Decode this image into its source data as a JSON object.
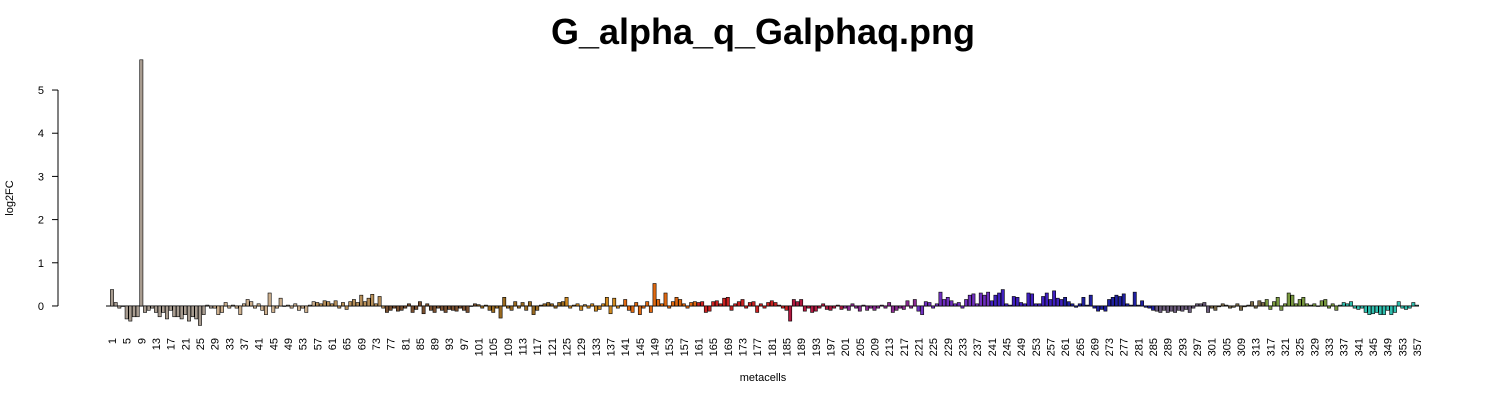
{
  "chart_data": {
    "type": "bar",
    "title": "G_alpha_q_Galphaq.png",
    "x_label": "metacells",
    "y_label": "log2FC",
    "ylim": [
      -0.45,
      5.7
    ],
    "yticks": [
      0,
      1,
      2,
      3,
      4,
      5
    ],
    "categories": [
      1,
      null,
      null,
      null,
      5,
      null,
      null,
      null,
      9,
      null,
      null,
      null,
      13,
      null,
      null,
      null,
      17,
      null,
      null,
      null,
      21,
      null,
      null,
      null,
      25,
      null,
      null,
      null,
      29,
      null,
      null,
      null,
      33,
      null,
      null,
      null,
      37,
      null,
      null,
      null,
      41,
      null,
      null,
      null,
      45,
      null,
      null,
      null,
      49,
      null,
      null,
      null,
      53,
      null,
      null,
      null,
      57,
      null,
      null,
      null,
      61,
      null,
      null,
      null,
      65,
      null,
      null,
      null,
      69,
      null,
      null,
      null,
      73,
      null,
      null,
      null,
      77,
      null,
      null,
      null,
      81,
      null,
      null,
      null,
      85,
      null,
      null,
      null,
      89,
      null,
      null,
      null,
      93,
      null,
      null,
      null,
      97,
      null,
      null,
      null,
      101,
      null,
      null,
      null,
      105,
      null,
      null,
      null,
      109,
      null,
      null,
      null,
      113,
      null,
      null,
      null,
      117,
      null,
      null,
      null,
      121,
      null,
      null,
      null,
      125,
      null,
      null,
      null,
      129,
      null,
      null,
      null,
      133,
      null,
      null,
      null,
      137,
      null,
      null,
      null,
      141,
      null,
      null,
      null,
      145,
      null,
      null,
      null,
      149,
      null,
      null,
      null,
      153,
      null,
      null,
      null,
      157,
      null,
      null,
      null,
      161,
      null,
      null,
      null,
      165,
      null,
      null,
      null,
      169,
      null,
      null,
      null,
      173,
      null,
      null,
      null,
      177,
      null,
      null,
      null,
      181,
      null,
      null,
      null,
      185,
      null,
      null,
      null,
      189,
      null,
      null,
      null,
      193,
      null,
      null,
      null,
      197,
      null,
      null,
      null,
      201,
      null,
      null,
      null,
      205,
      null,
      null,
      null,
      209,
      null,
      null,
      null,
      213,
      null,
      null,
      null,
      217,
      null,
      null,
      null,
      221,
      null,
      null,
      null,
      225,
      null,
      null,
      null,
      229,
      null,
      null,
      null,
      233,
      null,
      null,
      null,
      237,
      null,
      null,
      null,
      241,
      null,
      null,
      null,
      245,
      null,
      null,
      null,
      249,
      null,
      null,
      null,
      253,
      null,
      null,
      null,
      257,
      null,
      null,
      null,
      261,
      null,
      null,
      null,
      265,
      null,
      null,
      null,
      269,
      null,
      null,
      null,
      273,
      null,
      null,
      null,
      277,
      null,
      null,
      null,
      281,
      null,
      null,
      null,
      285,
      null,
      null,
      null,
      289,
      null,
      null,
      null,
      293,
      null,
      null,
      null,
      297,
      null,
      null,
      null,
      301,
      null,
      null,
      null,
      305,
      null,
      null,
      null,
      309,
      null,
      null,
      null,
      313,
      null,
      null,
      null,
      317,
      null,
      null,
      null,
      321,
      null,
      null,
      null,
      325,
      null,
      null,
      null,
      329,
      null,
      null,
      null,
      333,
      null,
      null,
      null,
      337,
      null,
      null,
      null,
      341,
      null,
      null,
      null,
      345,
      null,
      null,
      null,
      349,
      null,
      null,
      null,
      353,
      null,
      null,
      null,
      357
    ],
    "values": [
      0.38,
      0.08,
      -0.05,
      0,
      -0.3,
      -0.35,
      -0.25,
      -0.25,
      5.7,
      -0.15,
      -0.1,
      -0.05,
      -0.15,
      -0.25,
      -0.15,
      -0.3,
      -0.1,
      -0.25,
      -0.25,
      -0.3,
      -0.2,
      -0.35,
      -0.25,
      -0.3,
      -0.45,
      -0.2,
      0.02,
      -0.05,
      -0.05,
      -0.2,
      -0.15,
      0.08,
      -0.05,
      0.02,
      -0.05,
      -0.2,
      0.05,
      0.15,
      0.1,
      -0.05,
      0.05,
      -0.1,
      -0.2,
      0.3,
      -0.15,
      -0.05,
      0.18,
      0,
      0.02,
      -0.05,
      0.05,
      -0.1,
      -0.05,
      -0.15,
      0.02,
      0.1,
      0.08,
      0.05,
      0.12,
      0.1,
      0.05,
      0.12,
      -0.05,
      0.08,
      -0.08,
      0.1,
      0.15,
      0.08,
      0.25,
      0.1,
      0.18,
      0.27,
      0.05,
      0.22,
      -0.05,
      -0.15,
      -0.1,
      -0.05,
      -0.12,
      -0.1,
      -0.05,
      0.05,
      -0.15,
      -0.08,
      0.1,
      -0.18,
      0.05,
      -0.1,
      -0.15,
      -0.05,
      -0.1,
      -0.15,
      -0.08,
      -0.1,
      -0.12,
      -0.05,
      -0.1,
      -0.15,
      0,
      0.05,
      0.03,
      -0.05,
      0.02,
      -0.1,
      -0.15,
      -0.05,
      -0.28,
      0.2,
      -0.05,
      -0.1,
      0.1,
      -0.05,
      0.08,
      -0.1,
      0.1,
      -0.2,
      -0.1,
      0.02,
      0.05,
      0.08,
      0.05,
      -0.05,
      0.08,
      0.1,
      0.2,
      -0.05,
      0.02,
      0.05,
      -0.1,
      0.03,
      -0.05,
      0.05,
      -0.12,
      -0.08,
      0.05,
      0.2,
      -0.18,
      0.18,
      -0.05,
      0.02,
      0.15,
      -0.1,
      -0.15,
      0.08,
      -0.2,
      -0.05,
      0.1,
      -0.15,
      0.52,
      0.15,
      0.05,
      0.3,
      -0.05,
      0.1,
      0.2,
      0.15,
      0.05,
      -0.05,
      0.08,
      0.1,
      0.08,
      0.1,
      -0.15,
      -0.12,
      0.1,
      0.12,
      0.05,
      0.18,
      0.2,
      -0.1,
      0.05,
      0.1,
      0.15,
      -0.05,
      0.08,
      0.1,
      -0.15,
      0.05,
      -0.05,
      0.08,
      0.12,
      0.08,
      0.02,
      -0.05,
      -0.1,
      -0.35,
      0.15,
      0.1,
      0.15,
      -0.12,
      -0.05,
      -0.15,
      -0.12,
      -0.05,
      0.05,
      -0.08,
      -0.1,
      -0.05,
      0.02,
      -0.08,
      -0.05,
      -0.1,
      0.05,
      -0.05,
      -0.12,
      0.02,
      -0.1,
      -0.05,
      -0.1,
      -0.05,
      0.02,
      -0.05,
      0.08,
      -0.15,
      -0.1,
      -0.05,
      -0.08,
      0.12,
      -0.05,
      0.15,
      -0.12,
      -0.2,
      0.1,
      0.08,
      -0.05,
      0.05,
      0.32,
      0.15,
      0.2,
      0.12,
      0.05,
      0.08,
      -0.05,
      0.15,
      0.25,
      0.28,
      0.05,
      0.3,
      0.25,
      0.32,
      0.12,
      0.25,
      0.3,
      0.38,
      0.05,
      0.02,
      0.22,
      0.2,
      0.08,
      0.05,
      0.3,
      0.28,
      0.05,
      0.05,
      0.22,
      0.3,
      0.15,
      0.35,
      0.18,
      0.15,
      0.2,
      0.1,
      0.05,
      -0.03,
      0.05,
      0.2,
      0.02,
      0.25,
      -0.05,
      -0.12,
      -0.08,
      -0.12,
      0.15,
      0.2,
      0.25,
      0.22,
      0.28,
      0.05,
      0.02,
      0.32,
      0.02,
      0.12,
      -0.03,
      -0.05,
      -0.1,
      -0.12,
      -0.15,
      -0.1,
      -0.15,
      -0.12,
      -0.15,
      -0.1,
      -0.12,
      -0.08,
      -0.15,
      -0.05,
      0.05,
      0.05,
      0.08,
      -0.15,
      -0.05,
      -0.1,
      -0.02,
      0.05,
      0.02,
      -0.05,
      -0.03,
      0.05,
      -0.1,
      -0.02,
      0.02,
      0.1,
      -0.05,
      0.12,
      0.08,
      0.15,
      -0.08,
      0.1,
      0.2,
      -0.1,
      0.05,
      0.3,
      0.25,
      0.05,
      0.15,
      0.2,
      0.05,
      0.02,
      0.05,
      0,
      0.12,
      0.15,
      -0.05,
      0.05,
      -0.1,
      0.02,
      0.08,
      0.05,
      0.1,
      -0.05,
      -0.08,
      -0.05,
      -0.15,
      -0.2,
      -0.18,
      -0.15,
      -0.2,
      -0.2,
      -0.1,
      -0.2,
      -0.15,
      0.1,
      -0.05,
      -0.08,
      -0.05,
      0.08,
      0.02
    ],
    "colors": [
      "#a89c90",
      "#a89c90",
      "#a89c90",
      "#a89c90",
      "#a89c90",
      "#a89c90",
      "#a89c90",
      "#a89c90",
      "#a89c90",
      "#a89c90",
      "#a89c90",
      "#a89c90",
      "#a89c90",
      "#a89c90",
      "#a89c90",
      "#a89c90",
      "#a89c90",
      "#a89c90",
      "#a89c90",
      "#a89c90",
      "#a89c90",
      "#a89c90",
      "#a89c90",
      "#a89c90",
      "#a89c90",
      "#a89c90",
      "#a89c90",
      "#a89c90",
      "#cdb08e",
      "#cdb08e",
      "#cdb08e",
      "#cdb08e",
      "#cdb08e",
      "#cdb08e",
      "#cdb08e",
      "#cdb08e",
      "#cdb08e",
      "#cdb08e",
      "#cdb08e",
      "#cdb08e",
      "#cdb08e",
      "#cdb08e",
      "#cdb08e",
      "#cdb08e",
      "#cdb08e",
      "#cdb08e",
      "#cdb08e",
      "#cdb08e",
      "#cdb08e",
      "#cdb08e",
      "#cdb08e",
      "#cdb08e",
      "#cdb08e",
      "#cdb08e",
      "#cdb08e",
      "#cdb08e",
      "#b8905a",
      "#b8905a",
      "#b8905a",
      "#b8905a",
      "#b8905a",
      "#b8905a",
      "#b8905a",
      "#b8905a",
      "#b8905a",
      "#b8905a",
      "#b8905a",
      "#b8905a",
      "#b8905a",
      "#b8905a",
      "#b8905a",
      "#b8905a",
      "#b8905a",
      "#b8905a",
      "#b8905a",
      "#7a5030",
      "#7a5030",
      "#7a5030",
      "#7a5030",
      "#7a5030",
      "#7a5030",
      "#7a5030",
      "#7a5030",
      "#7a5030",
      "#7a5030",
      "#7a5030",
      "#7a5030",
      "#7a5030",
      "#7a5030",
      "#7a5030",
      "#7a5030",
      "#7a5030",
      "#7a5030",
      "#7a5030",
      "#7a5030",
      "#7a5030",
      "#7a5030",
      "#7a5030",
      "#7a5030",
      "#7a5030",
      "#9a6a20",
      "#9a6a20",
      "#9a6a20",
      "#9a6a20",
      "#9a6a20",
      "#9a6a20",
      "#9a6a20",
      "#9a6a20",
      "#9a6a20",
      "#9a6a20",
      "#9a6a20",
      "#9a6a20",
      "#9a6a20",
      "#9a6a20",
      "#9a6a20",
      "#9a6a20",
      "#9a6a20",
      "#9a6a20",
      "#9a6a20",
      "#9a6a20",
      "#9a6a20",
      "#9a6a20",
      "#9a6a20",
      "#9a6a20",
      "#d08a20",
      "#d08a20",
      "#d08a20",
      "#d08a20",
      "#d08a20",
      "#d08a20",
      "#d08a20",
      "#d08a20",
      "#d08a20",
      "#d08a20",
      "#d08a20",
      "#d08a20",
      "#d08a20",
      "#d08a20",
      "#d08a20",
      "#d08a20",
      "#e06810",
      "#e06810",
      "#e06810",
      "#e06810",
      "#e06810",
      "#e06810",
      "#e06810",
      "#e06810",
      "#e06810",
      "#e06810",
      "#e06810",
      "#e06810",
      "#e06810",
      "#e06810",
      "#e06810",
      "#e06810",
      "#e06810",
      "#e06810",
      "#e06810",
      "#e06810",
      "#cc2222",
      "#cc2222",
      "#cc2222",
      "#cc2222",
      "#cc2222",
      "#cc2222",
      "#cc2222",
      "#cc2222",
      "#cc2222",
      "#cc2222",
      "#cc2222",
      "#cc2222",
      "#cc2222",
      "#cc2222",
      "#cc2222",
      "#cc2222",
      "#cc2222",
      "#cc2222",
      "#cc2222",
      "#cc2222",
      "#cc2222",
      "#cc2222",
      "#cc2222",
      "#cc2222",
      "#cc2222",
      "#b01840",
      "#b01840",
      "#b01840",
      "#b01840",
      "#b01840",
      "#b01840",
      "#b01840",
      "#b01840",
      "#b01840",
      "#b01840",
      "#b01840",
      "#b01840",
      "#b01840",
      "#b01840",
      "#b01840",
      "#8a2a90",
      "#8a2a90",
      "#8a2a90",
      "#8a2a90",
      "#8a2a90",
      "#8a2a90",
      "#8a2a90",
      "#8a2a90",
      "#8a2a90",
      "#8a2a90",
      "#8a2a90",
      "#8a2a90",
      "#8a2a90",
      "#8a2a90",
      "#8a2a90",
      "#8a2a90",
      "#8a2a90",
      "#8a2a90",
      "#8a2a90",
      "#8a2a90",
      "#7030c0",
      "#7030c0",
      "#7030c0",
      "#7030c0",
      "#7030c0",
      "#7030c0",
      "#7030c0",
      "#7030c0",
      "#7030c0",
      "#7030c0",
      "#7030c0",
      "#7030c0",
      "#7030c0",
      "#7030c0",
      "#7030c0",
      "#7030c0",
      "#7030c0",
      "#7030c0",
      "#7030c0",
      "#7030c0",
      "#4020c0",
      "#4020c0",
      "#4020c0",
      "#4020c0",
      "#4020c0",
      "#4020c0",
      "#4020c0",
      "#4020c0",
      "#4020c0",
      "#4020c0",
      "#4020c0",
      "#4020c0",
      "#4020c0",
      "#4020c0",
      "#4020c0",
      "#4020c0",
      "#4020c0",
      "#4020c0",
      "#4020c0",
      "#4020c0",
      "#2020a0",
      "#2020a0",
      "#2020a0",
      "#2020a0",
      "#2020a0",
      "#2020a0",
      "#2020a0",
      "#2020a0",
      "#2020a0",
      "#2020a0",
      "#2020a0",
      "#2020a0",
      "#2020a0",
      "#2020a0",
      "#2020a0",
      "#2020a0",
      "#2020a0",
      "#2020a0",
      "#2020a0",
      "#2020a0",
      "#2020a0",
      "#2020a0",
      "#2020a0",
      "#2020a0",
      "#2020a0",
      "#6a5a7a",
      "#6a5a7a",
      "#6a5a7a",
      "#6a5a7a",
      "#6a5a7a",
      "#6a5a7a",
      "#6a5a7a",
      "#6a5a7a",
      "#6a5a7a",
      "#6a5a7a",
      "#6a5a7a",
      "#6a5a7a",
      "#6a5a7a",
      "#6a5a7a",
      "#6a5a7a",
      "#7a6a48",
      "#7a6a48",
      "#7a6a48",
      "#7a6a48",
      "#7a6a48",
      "#7a6a48",
      "#7a6a48",
      "#7a6a48",
      "#7a6a48",
      "#7a6a48",
      "#7a6a48",
      "#7a6a48",
      "#7a6a48",
      "#7a6a48",
      "#7a6a48",
      "#7a9a40",
      "#7a9a40",
      "#7a9a40",
      "#7a9a40",
      "#7a9a40",
      "#7a9a40",
      "#7a9a40",
      "#7a9a40",
      "#7a9a40",
      "#7a9a40",
      "#7a9a40",
      "#7a9a40",
      "#7a9a40",
      "#7a9a40",
      "#7a9a40",
      "#7a9a40",
      "#7a9a40",
      "#7a9a40",
      "#7a9a40",
      "#7a9a40",
      "#30c0b0",
      "#30c0b0",
      "#30c0b0",
      "#30c0b0",
      "#30c0b0",
      "#30c0b0",
      "#30c0b0",
      "#30c0b0",
      "#30c0b0",
      "#30c0b0",
      "#30c0b0",
      "#30c0b0",
      "#30c0b0",
      "#30c0b0",
      "#30c0b0",
      "#30c0b0",
      "#30c0b0",
      "#30c0b0",
      "#30c0b0",
      "#30c0b0",
      "#30c0b0",
      "#30c0b0"
    ]
  }
}
